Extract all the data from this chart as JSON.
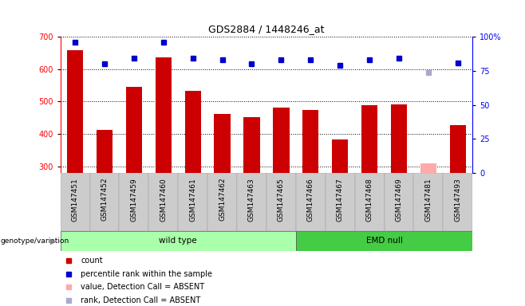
{
  "title": "GDS2884 / 1448246_at",
  "samples": [
    "GSM147451",
    "GSM147452",
    "GSM147459",
    "GSM147460",
    "GSM147461",
    "GSM147462",
    "GSM147463",
    "GSM147465",
    "GSM147466",
    "GSM147467",
    "GSM147468",
    "GSM147469",
    "GSM147481",
    "GSM147493"
  ],
  "count_values": [
    658,
    413,
    546,
    636,
    533,
    463,
    452,
    482,
    475,
    384,
    490,
    492,
    310,
    428
  ],
  "rank_values": [
    96,
    80,
    84,
    96,
    84,
    83,
    80,
    83,
    83,
    79,
    83,
    84,
    74,
    81
  ],
  "absent_count_idx": [
    12
  ],
  "absent_rank_idx": [
    12
  ],
  "wild_type_count": 8,
  "emd_null_count": 6,
  "ylim_left": [
    280,
    700
  ],
  "ylim_right": [
    0,
    100
  ],
  "yticks_left": [
    300,
    400,
    500,
    600,
    700
  ],
  "yticks_right": [
    0,
    25,
    50,
    75,
    100
  ],
  "bar_color": "#cc0000",
  "absent_bar_color": "#ffaaaa",
  "rank_color": "#0000cc",
  "absent_rank_color": "#aaaacc",
  "wt_color": "#aaffaa",
  "emd_color": "#44cc44",
  "bg_color": "#cccccc",
  "label_count": "count",
  "label_rank": "percentile rank within the sample",
  "label_absent_count": "value, Detection Call = ABSENT",
  "label_absent_rank": "rank, Detection Call = ABSENT",
  "group_label": "genotype/variation",
  "wt_label": "wild type",
  "emd_label": "EMD null"
}
